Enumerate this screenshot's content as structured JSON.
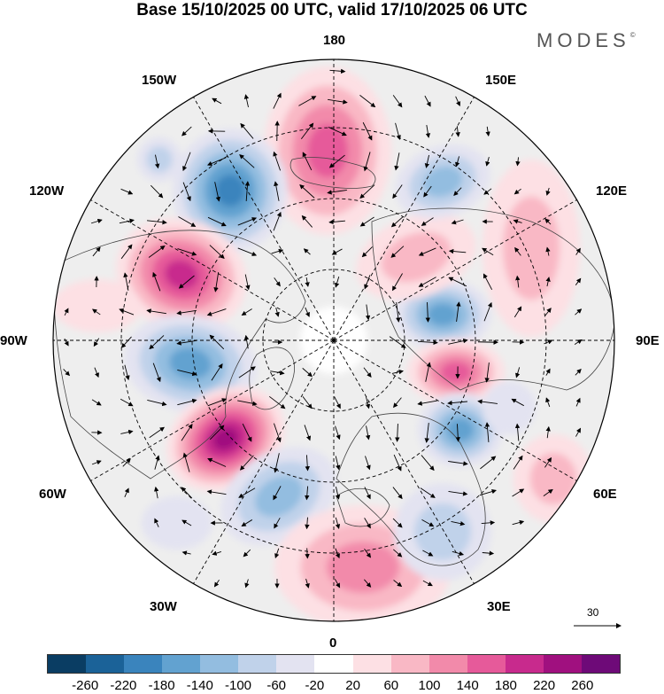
{
  "title": "Base 15/10/2025 00 UTC, valid 17/10/2025 06 UTC",
  "brand": "MODES",
  "brand_mark": "©",
  "map": {
    "projection": "north polar stereographic",
    "longitude_labels": {
      "lon_180": "180",
      "lon_150W": "150W",
      "lon_150E": "150E",
      "lon_120W": "120W",
      "lon_120E": "120E",
      "lon_90W": "90W",
      "lon_90E": "90E",
      "lon_60W": "60W",
      "lon_60E": "60E",
      "lon_30W": "30W",
      "lon_30E": "30E",
      "lon_0": "0"
    },
    "background_color": "#eeeeee",
    "grid_style": "dashed"
  },
  "reference_vector": {
    "label": "30"
  },
  "colorbar": {
    "colors": [
      "#0a3d63",
      "#1b6298",
      "#3a84bd",
      "#62a2d0",
      "#93bde0",
      "#c0d2ea",
      "#e3e3f1",
      "#ffffff",
      "#fde0e4",
      "#f9b8c5",
      "#f28aaa",
      "#e65a9a",
      "#c82a8d",
      "#a0107f",
      "#6e0a78"
    ],
    "tick_labels": [
      "-260",
      "-220",
      "-180",
      "-140",
      "-100",
      "-60",
      "-20",
      "20",
      "60",
      "100",
      "140",
      "180",
      "220",
      "260"
    ]
  }
}
